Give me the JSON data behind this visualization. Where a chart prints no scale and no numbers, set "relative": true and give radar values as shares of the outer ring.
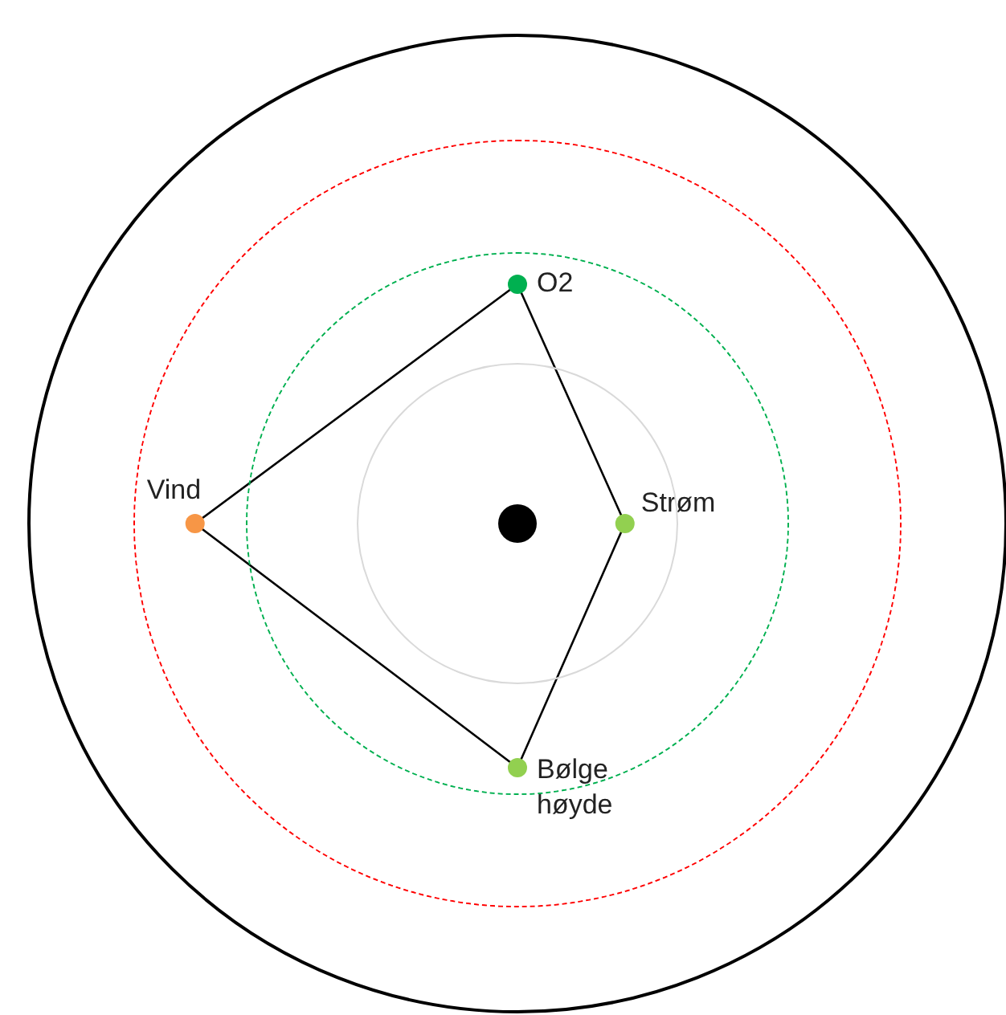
{
  "chart_data": {
    "type": "radar",
    "relative": true,
    "categories": [
      "O2",
      "Strøm",
      "Bølge høyde",
      "Vind"
    ],
    "series": [
      {
        "color": "#000000",
        "colors": [
          "#00b050",
          "#92d050",
          "#92d050",
          "#f79646"
        ],
        "values": [
          0.49,
          0.22,
          0.5,
          0.66
        ]
      }
    ],
    "grid": false,
    "legend": false,
    "marker": "circle"
  }
}
